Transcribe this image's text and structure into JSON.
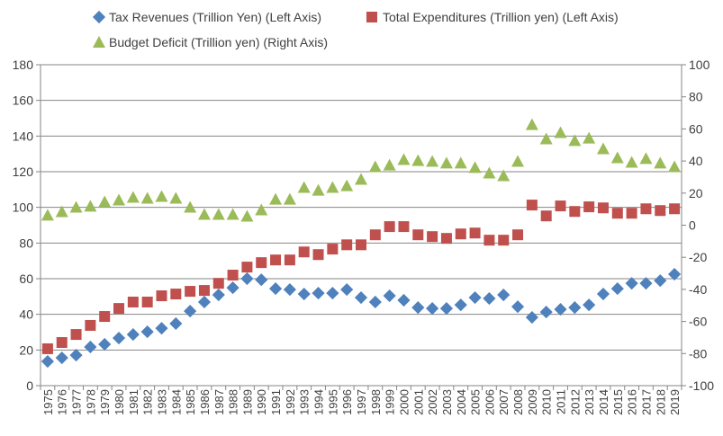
{
  "chart_data": {
    "type": "scatter",
    "title": "",
    "categories": [
      "1975",
      "1976",
      "1977",
      "1978",
      "1979",
      "1980",
      "1981",
      "1982",
      "1983",
      "1984",
      "1985",
      "1986",
      "1987",
      "1988",
      "1989",
      "1990",
      "1991",
      "1992",
      "1993",
      "1994",
      "1995",
      "1996",
      "1997",
      "1998",
      "1999",
      "2000",
      "2001",
      "2002",
      "2003",
      "2004",
      "2005",
      "2006",
      "2007",
      "2008",
      "2009",
      "2010",
      "2011",
      "2012",
      "2013",
      "2014",
      "2015",
      "2016",
      "2017",
      "2018",
      "2019"
    ],
    "left_axis": {
      "min": 0,
      "max": 180,
      "step": 20,
      "ticks": [
        "0",
        "20",
        "40",
        "60",
        "80",
        "100",
        "120",
        "140",
        "160",
        "180"
      ]
    },
    "right_axis": {
      "min": -100,
      "max": 100,
      "step": 20,
      "ticks": [
        "-100",
        "-80",
        "-60",
        "-40",
        "-20",
        "0",
        "20",
        "40",
        "60",
        "80",
        "100"
      ]
    },
    "grid": true,
    "legend_position": "top",
    "series": [
      {
        "name": "Tax Revenues (Trillion Yen) (Left Axis)",
        "axis": "left",
        "marker": "diamond",
        "color": "#4F81BD",
        "values": [
          13.6,
          15.6,
          17.1,
          21.7,
          23.2,
          26.7,
          28.7,
          30.2,
          32.2,
          34.8,
          41.8,
          46.9,
          50.9,
          54.9,
          60.0,
          59.4,
          54.4,
          53.9,
          51.4,
          51.9,
          51.9,
          53.9,
          49.4,
          46.9,
          50.4,
          47.9,
          43.8,
          43.3,
          43.3,
          45.3,
          49.4,
          48.9,
          50.9,
          44.3,
          38.3,
          41.3,
          42.8,
          43.8,
          45.3,
          51.4,
          54.4,
          57.4,
          57.4,
          58.9,
          62.5
        ]
      },
      {
        "name": "Total Expenditures (Trillion yen) (Left Axis)",
        "axis": "left",
        "marker": "square",
        "color": "#C0504D",
        "values": [
          20.7,
          24.2,
          28.7,
          33.8,
          38.8,
          43.3,
          46.9,
          46.9,
          50.4,
          51.4,
          52.9,
          53.4,
          57.4,
          62.0,
          66.5,
          69.0,
          70.5,
          70.5,
          75.0,
          73.5,
          76.6,
          79.0,
          79.0,
          84.6,
          89.2,
          89.2,
          84.6,
          83.6,
          82.6,
          85.1,
          85.6,
          81.6,
          81.6,
          84.6,
          101.3,
          95.2,
          100.8,
          97.7,
          100.3,
          99.7,
          96.7,
          96.7,
          99.2,
          98.2,
          99.2
        ]
      },
      {
        "name": "Budget Deficit (Trillion yen) (Right Axis)",
        "axis": "right",
        "marker": "triangle",
        "color": "#9BBB59",
        "values": [
          6.2,
          8.4,
          11.2,
          11.8,
          14.6,
          15.7,
          17.4,
          16.8,
          17.9,
          16.8,
          11.2,
          6.7,
          6.7,
          6.7,
          5.6,
          9.5,
          16.2,
          16.2,
          23.5,
          21.8,
          23.5,
          24.6,
          28.6,
          36.4,
          37.5,
          40.9,
          40.3,
          39.8,
          38.7,
          38.7,
          35.9,
          32.5,
          30.8,
          39.8,
          62.7,
          53.8,
          57.7,
          52.7,
          54.3,
          47.6,
          42.0,
          39.2,
          41.5,
          38.7,
          36.4
        ]
      }
    ]
  }
}
